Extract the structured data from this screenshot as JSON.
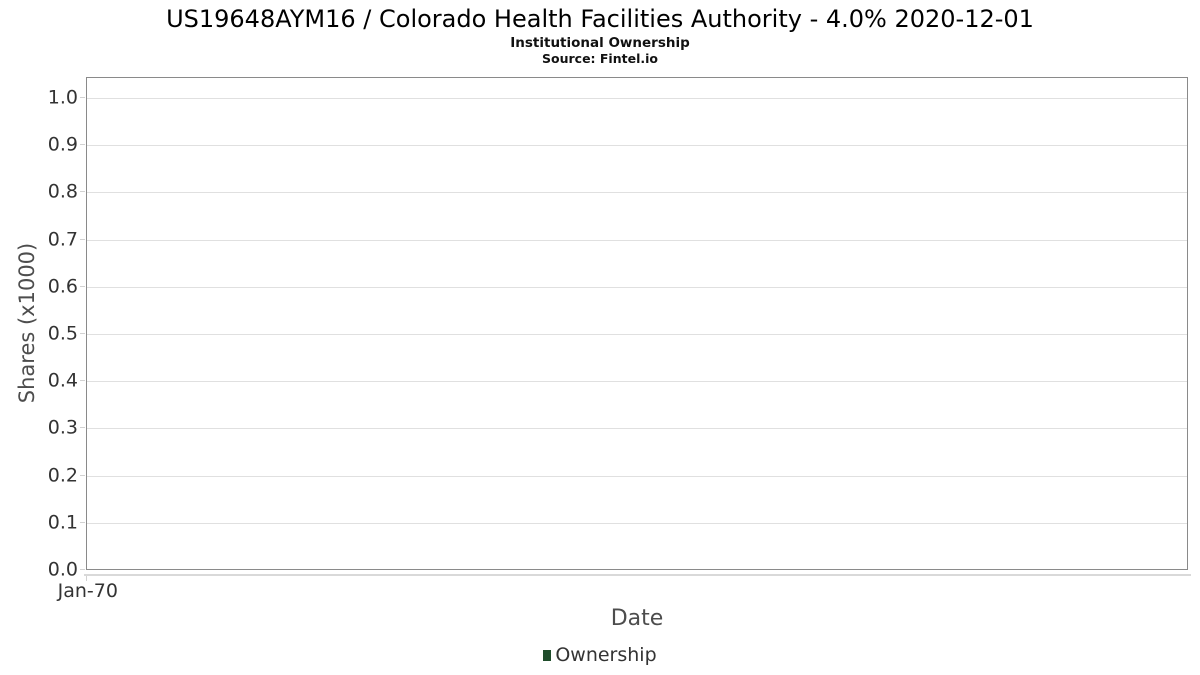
{
  "chart_data": {
    "type": "column",
    "title": "US19648AYM16 / Colorado Health Facilities Authority - 4.0% 2020-12-01",
    "subtitle": "Institutional Ownership",
    "source": "Source: Fintel.io",
    "xlabel": "Date",
    "ylabel": "Shares (x1000)",
    "x_tick_labels": [
      "Jan-70"
    ],
    "y_tick_labels": [
      "0.0",
      "0.1",
      "0.2",
      "0.3",
      "0.4",
      "0.5",
      "0.6",
      "0.7",
      "0.8",
      "0.9",
      "1.0"
    ],
    "ylim": [
      0,
      1.045
    ],
    "grid": true,
    "legend_position": "bottom-center",
    "series": [
      {
        "name": "Ownership",
        "color": "#1f4d2b",
        "values": []
      }
    ]
  },
  "colors": {
    "plot_border": "#8a8a8a",
    "grid": "#e0e0e0",
    "axis_line": "#d9d9d9",
    "tick": "#d2d2d2",
    "tick_label_text": "#333333",
    "axis_title_text": "#4d4d4d",
    "title_text": "#000000",
    "series_ownership": "#1f4d2b"
  }
}
